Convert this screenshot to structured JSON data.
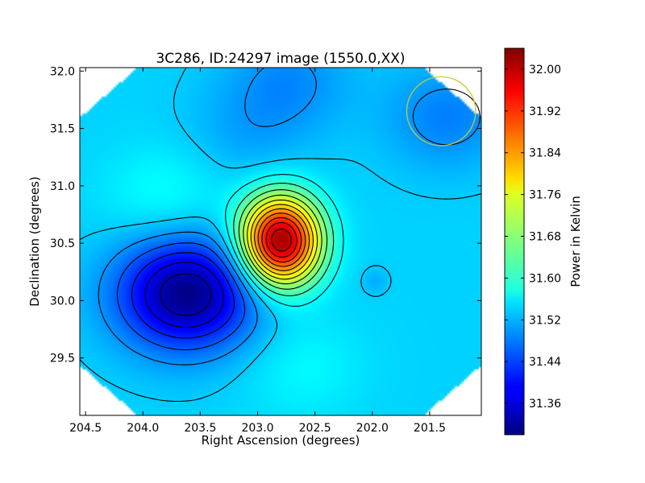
{
  "chart_data": {
    "type": "heatmap",
    "title": "3C286, ID:24297 image (1550.0,XX)",
    "xlabel": "Right Ascension (degrees)",
    "ylabel": "Declination (degrees)",
    "xlim": [
      204.55,
      201.05
    ],
    "ylim": [
      29.0,
      32.03
    ],
    "x_reversed": true,
    "x_ticks": [
      "204.5",
      "204.0",
      "203.5",
      "203.0",
      "202.5",
      "202.0",
      "201.5"
    ],
    "x_tick_values": [
      204.5,
      204.0,
      203.5,
      203.0,
      202.5,
      202.0,
      201.5
    ],
    "y_ticks": [
      "29.5",
      "30.0",
      "30.5",
      "31.0",
      "31.5",
      "32.0"
    ],
    "y_tick_values": [
      29.5,
      30.0,
      30.5,
      31.0,
      31.5,
      32.0
    ],
    "colorbar": {
      "label": "Power in Kelvin",
      "colormap": "jet",
      "range": [
        31.3,
        32.04
      ],
      "ticks": [
        "31.36",
        "31.44",
        "31.52",
        "31.60",
        "31.68",
        "31.76",
        "31.84",
        "31.92",
        "32.00"
      ],
      "tick_values": [
        31.36,
        31.44,
        31.52,
        31.6,
        31.68,
        31.76,
        31.84,
        31.92,
        32.0
      ]
    },
    "field": {
      "background": 31.545,
      "features": [
        {
          "kind": "peak",
          "ra": 202.8,
          "dec": 30.52,
          "amplitude": 0.48
        },
        {
          "kind": "trough",
          "ra": 203.62,
          "dec": 30.06,
          "amplitude": -0.24
        },
        {
          "kind": "trough",
          "ra": 202.72,
          "dec": 31.92,
          "amplitude": -0.05
        },
        {
          "kind": "trough",
          "ra": 201.35,
          "dec": 31.6,
          "amplitude": -0.06
        },
        {
          "kind": "trough",
          "ra": 203.1,
          "dec": 31.45,
          "amplitude": -0.03
        },
        {
          "kind": "trough",
          "ra": 201.98,
          "dec": 30.17,
          "amplitude": -0.025
        },
        {
          "kind": "bump",
          "ra": 202.6,
          "dec": 29.42,
          "amplitude": 0.03
        },
        {
          "kind": "bump",
          "ra": 203.8,
          "dec": 30.9,
          "amplitude": 0.04
        }
      ]
    },
    "beam_circle": {
      "ra": 201.4,
      "dec": 31.65,
      "radius_deg": 0.3,
      "color": "#c8c832"
    },
    "contour_color": "#000000"
  }
}
